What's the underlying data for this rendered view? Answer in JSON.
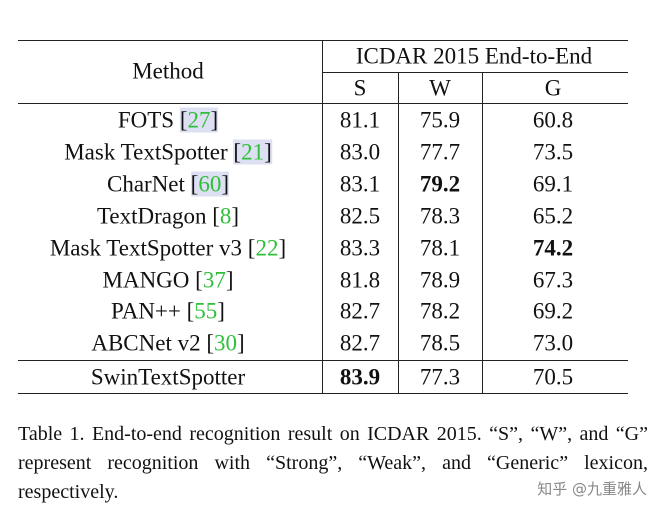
{
  "table": {
    "header": {
      "method": "Method",
      "group": "ICDAR 2015 End-to-End",
      "columns": [
        "S",
        "W",
        "G"
      ]
    },
    "rows": [
      {
        "method": "FOTS",
        "cite": "[27]",
        "highlight": true,
        "values": [
          "81.1",
          "75.9",
          "60.8"
        ],
        "bold": []
      },
      {
        "method": "Mask TextSpotter",
        "cite": "[21]",
        "highlight": true,
        "values": [
          "83.0",
          "77.7",
          "73.5"
        ],
        "bold": []
      },
      {
        "method": "CharNet",
        "cite": "[60]",
        "highlight": true,
        "values": [
          "83.1",
          "79.2",
          "69.1"
        ],
        "bold": [
          1
        ]
      },
      {
        "method": "TextDragon",
        "cite": "[8]",
        "highlight": false,
        "values": [
          "82.5",
          "78.3",
          "65.2"
        ],
        "bold": []
      },
      {
        "method": "Mask TextSpotter v3",
        "cite": "[22]",
        "highlight": false,
        "values": [
          "83.3",
          "78.1",
          "74.2"
        ],
        "bold": [
          2
        ]
      },
      {
        "method": "MANGO",
        "cite": "[37]",
        "highlight": false,
        "values": [
          "81.8",
          "78.9",
          "67.3"
        ],
        "bold": []
      },
      {
        "method": "PAN++",
        "cite": "[55]",
        "highlight": false,
        "values": [
          "82.7",
          "78.2",
          "69.2"
        ],
        "bold": []
      },
      {
        "method": "ABCNet v2",
        "cite": "[30]",
        "highlight": false,
        "values": [
          "82.7",
          "78.5",
          "73.0"
        ],
        "bold": []
      }
    ],
    "ours": {
      "method": "SwinTextSpotter",
      "values": [
        "83.9",
        "77.3",
        "70.5"
      ],
      "bold": [
        0
      ]
    }
  },
  "caption": "Table 1.  End-to-end recognition result on ICDAR 2015. “S”, “W”, and “G” represent recognition with “Strong”, “Weak”, and “Generic” lexicon, respectively.",
  "watermark": "知乎 @九重雅人"
}
